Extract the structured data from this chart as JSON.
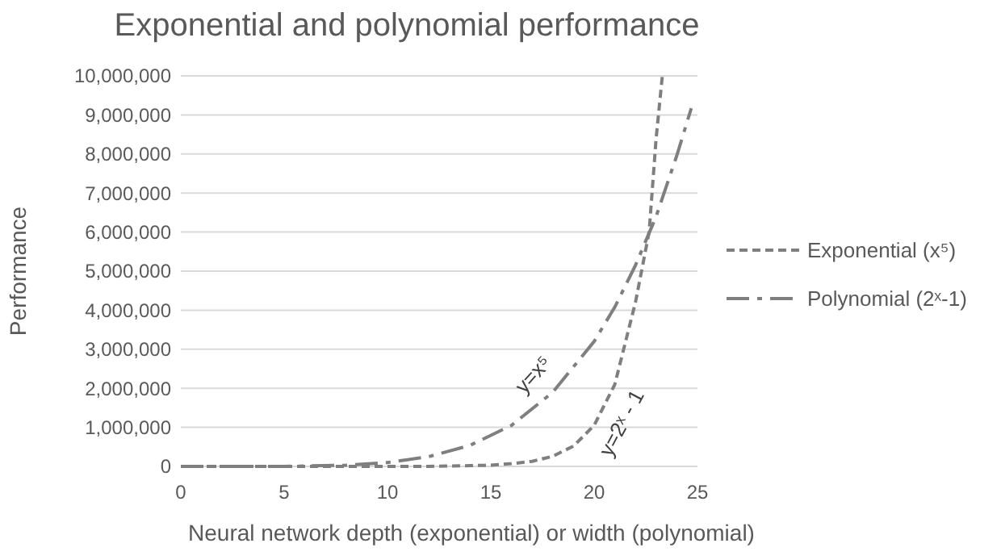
{
  "chart_data": {
    "type": "line",
    "title": "Exponential and polynomial performance",
    "xlabel": "Neural network depth (exponential) or width (polynomial)",
    "ylabel": "Performance",
    "xlim": [
      0,
      25
    ],
    "xticks": [
      0,
      5,
      10,
      15,
      20,
      25
    ],
    "ylim": [
      0,
      10000000
    ],
    "yticks": [
      0,
      {
        "value": 1000000,
        "label": "1,000,000"
      },
      {
        "value": 2000000,
        "label": "2,000,000"
      },
      {
        "value": 3000000,
        "label": "3,000,000"
      },
      {
        "value": 4000000,
        "label": "4,000,000"
      },
      {
        "value": 5000000,
        "label": "5,000,000"
      },
      {
        "value": 6000000,
        "label": "6,000,000"
      },
      {
        "value": 7000000,
        "label": "7,000,000"
      },
      {
        "value": 8000000,
        "label": "8,000,000"
      },
      {
        "value": 9000000,
        "label": "9,000,000"
      },
      {
        "value": 10000000,
        "label": "10,000,000"
      }
    ],
    "grid": "y",
    "legend": "right",
    "series": [
      {
        "name": "Exponential (x⁵)",
        "color": "#7f7f7f",
        "line_style": "dashed",
        "x": [
          0,
          5,
          10,
          12,
          14,
          15,
          16,
          17,
          18,
          19,
          20,
          21,
          22,
          22.66,
          23,
          23.3
        ],
        "values": [
          0,
          0,
          0,
          0,
          20000,
          30000,
          70000,
          130000,
          260000,
          520000,
          1050000,
          2100000,
          4200000,
          6000000,
          8400000,
          10000000
        ]
      },
      {
        "name": "Polynomial (2ˣ-1)",
        "color": "#7f7f7f",
        "line_style": "dashdot",
        "x": [
          0,
          5,
          8,
          10,
          12,
          14,
          16,
          18,
          20,
          21,
          22,
          23,
          24,
          24.7
        ],
        "values": [
          0,
          0,
          30000,
          100000,
          250000,
          540000,
          1050000,
          1900000,
          3200000,
          4080000,
          5150000,
          6400000,
          7960000,
          9170000
        ]
      }
    ],
    "annotations": [
      {
        "text": "y=x⁵",
        "x": 18,
        "y": 1900000
      },
      {
        "text": "y=2ˣ - 1",
        "x": 21,
        "y": 2100000
      }
    ]
  }
}
